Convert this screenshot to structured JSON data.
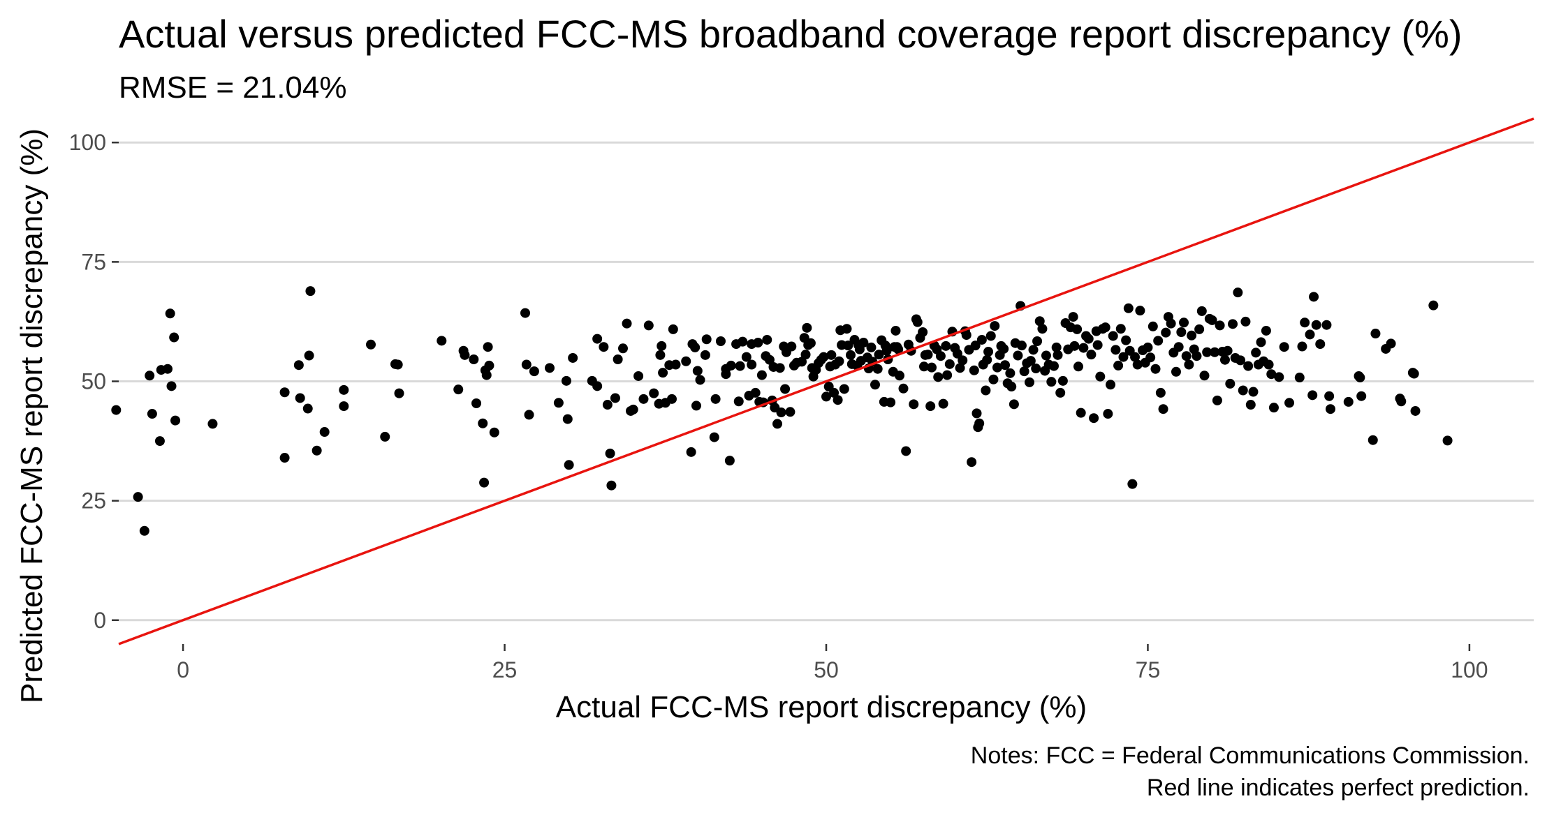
{
  "chart_data": {
    "type": "scatter",
    "title": "Actual versus predicted FCC-MS broadband coverage report discrepancy (%)",
    "subtitle": "RMSE = 21.04%",
    "xlabel": "Actual FCC-MS report discrepancy (%)",
    "ylabel": "Predicted FCC-MS report discrepancy (%)",
    "caption": [
      "Notes: FCC = Federal Communications Commission.",
      "Red line indicates perfect prediction."
    ],
    "xlim": [
      -5,
      105
    ],
    "ylim": [
      -5,
      105
    ],
    "x_ticks": [
      0,
      25,
      50,
      75,
      100
    ],
    "y_ticks": [
      0,
      25,
      50,
      75,
      100
    ],
    "grid": "horizontal major",
    "reference_line": {
      "slope": 1,
      "intercept": 0,
      "color": "#e8140f"
    },
    "point_color": "#000000",
    "points": [
      [
        -5.2,
        44
      ],
      [
        -3.5,
        25.8
      ],
      [
        -3,
        18.7
      ],
      [
        -2.6,
        51.2
      ],
      [
        -2.4,
        43.2
      ],
      [
        -1.8,
        37.5
      ],
      [
        -1.7,
        52.4
      ],
      [
        -1.2,
        52.6
      ],
      [
        -1,
        64.2
      ],
      [
        -0.9,
        49
      ],
      [
        -0.7,
        59.2
      ],
      [
        -0.6,
        41.8
      ],
      [
        2.3,
        41.1
      ],
      [
        7.9,
        47.7
      ],
      [
        7.9,
        34
      ],
      [
        9,
        53.4
      ],
      [
        9.1,
        46.5
      ],
      [
        9.7,
        44.3
      ],
      [
        9.8,
        55.4
      ],
      [
        9.9,
        68.9
      ],
      [
        10.4,
        35.5
      ],
      [
        11,
        39.4
      ],
      [
        12.5,
        48.2
      ],
      [
        12.5,
        44.8
      ],
      [
        14.6,
        57.7
      ],
      [
        15.7,
        38.4
      ],
      [
        16.5,
        53.6
      ],
      [
        16.7,
        53.5
      ],
      [
        16.8,
        47.5
      ],
      [
        20.1,
        58.5
      ],
      [
        21.4,
        48.3
      ],
      [
        21.8,
        56.4
      ],
      [
        21.9,
        55.5
      ],
      [
        22.6,
        54.6
      ],
      [
        22.8,
        45.4
      ],
      [
        23.3,
        41.2
      ],
      [
        23.4,
        28.8
      ],
      [
        23.5,
        52.3
      ],
      [
        23.6,
        51.3
      ],
      [
        23.7,
        57.2
      ],
      [
        23.8,
        53.3
      ],
      [
        24.2,
        39.3
      ],
      [
        26.6,
        64.3
      ],
      [
        26.7,
        53.5
      ],
      [
        26.9,
        43
      ],
      [
        27.3,
        52.1
      ],
      [
        28.5,
        52.8
      ],
      [
        29.2,
        45.5
      ],
      [
        29.8,
        50.1
      ],
      [
        29.9,
        42.1
      ],
      [
        30,
        32.5
      ],
      [
        30.3,
        54.9
      ],
      [
        31.8,
        50.1
      ],
      [
        32.2,
        49
      ],
      [
        32.2,
        58.9
      ],
      [
        32.7,
        57.2
      ],
      [
        33,
        45.1
      ],
      [
        33.2,
        34.9
      ],
      [
        33.3,
        28.2
      ],
      [
        33.6,
        46.5
      ],
      [
        33.8,
        54.6
      ],
      [
        34.2,
        56.9
      ],
      [
        34.5,
        62.1
      ],
      [
        34.8,
        43.8
      ],
      [
        35,
        44.1
      ],
      [
        35.4,
        51.1
      ],
      [
        35.8,
        46.3
      ],
      [
        36.2,
        61.7
      ],
      [
        36.6,
        47.5
      ],
      [
        37,
        45.3
      ],
      [
        37.1,
        55.5
      ],
      [
        37.2,
        57.4
      ],
      [
        37.3,
        51.8
      ],
      [
        37.5,
        45.5
      ],
      [
        37.8,
        53.4
      ],
      [
        38,
        46.3
      ],
      [
        38.1,
        60.9
      ],
      [
        38.3,
        53.5
      ],
      [
        39.1,
        54.2
      ],
      [
        39.5,
        35.2
      ],
      [
        39.6,
        57.8
      ],
      [
        39.8,
        57.1
      ],
      [
        39.9,
        44.9
      ],
      [
        40,
        52.2
      ],
      [
        40.2,
        50.3
      ],
      [
        40.6,
        55.5
      ],
      [
        40.7,
        58.8
      ],
      [
        41.3,
        38.3
      ],
      [
        41.4,
        46.3
      ],
      [
        41.8,
        58.4
      ],
      [
        42.2,
        52.6
      ],
      [
        42.2,
        51.5
      ],
      [
        42.5,
        33.4
      ],
      [
        42.6,
        53.3
      ],
      [
        43,
        57.8
      ],
      [
        43.2,
        45.8
      ],
      [
        43.3,
        53.2
      ],
      [
        43.5,
        58.3
      ],
      [
        43.8,
        55.1
      ],
      [
        44,
        47
      ],
      [
        44.2,
        57.8
      ],
      [
        44.2,
        53.5
      ],
      [
        44.5,
        47.6
      ],
      [
        44.7,
        58.1
      ],
      [
        44.8,
        45.7
      ],
      [
        45,
        51.3
      ],
      [
        45.1,
        45.6
      ],
      [
        45.3,
        55.3
      ],
      [
        45.4,
        58.7
      ],
      [
        45.6,
        54.5
      ],
      [
        45.8,
        46
      ],
      [
        45.9,
        53
      ],
      [
        46,
        44.5
      ],
      [
        46.2,
        41.1
      ],
      [
        46.4,
        52.8
      ],
      [
        46.5,
        43.5
      ],
      [
        46.7,
        57.3
      ],
      [
        46.8,
        48.4
      ],
      [
        46.9,
        56.1
      ],
      [
        47.2,
        43.6
      ],
      [
        47.3,
        57.3
      ],
      [
        47.5,
        53.3
      ],
      [
        47.7,
        53.9
      ],
      [
        48.1,
        54.1
      ],
      [
        48.3,
        59.1
      ],
      [
        48.4,
        55.6
      ],
      [
        48.5,
        61.2
      ],
      [
        48.6,
        57.6
      ],
      [
        48.8,
        58
      ],
      [
        48.9,
        52.8
      ],
      [
        49,
        51
      ],
      [
        49.2,
        52.4
      ],
      [
        49.4,
        53.8
      ],
      [
        49.6,
        54.5
      ],
      [
        49.8,
        55.1
      ],
      [
        50,
        46.8
      ],
      [
        50.2,
        48.9
      ],
      [
        50.3,
        53.1
      ],
      [
        50.4,
        55.5
      ],
      [
        50.6,
        47.6
      ],
      [
        50.7,
        53.5
      ],
      [
        50.9,
        46.1
      ],
      [
        51,
        54.2
      ],
      [
        51.1,
        60.7
      ],
      [
        51.2,
        57.6
      ],
      [
        51.4,
        48.4
      ],
      [
        51.6,
        61
      ],
      [
        51.7,
        57.5
      ],
      [
        51.9,
        55.5
      ],
      [
        52,
        53.6
      ],
      [
        52.2,
        58.7
      ],
      [
        52.4,
        53.3
      ],
      [
        52.5,
        57.6
      ],
      [
        52.6,
        56.7
      ],
      [
        52.7,
        54.3
      ],
      [
        52.9,
        58.1
      ],
      [
        53.2,
        55
      ],
      [
        53.3,
        52.7
      ],
      [
        53.5,
        57.1
      ],
      [
        53.6,
        54.1
      ],
      [
        53.8,
        49.3
      ],
      [
        54,
        52.6
      ],
      [
        54.1,
        55.6
      ],
      [
        54.3,
        58.6
      ],
      [
        54.5,
        45.7
      ],
      [
        54.6,
        57.5
      ],
      [
        54.7,
        56.4
      ],
      [
        54.8,
        54.6
      ],
      [
        55,
        45.6
      ],
      [
        55.2,
        52
      ],
      [
        55.3,
        57.2
      ],
      [
        55.4,
        60.6
      ],
      [
        55.5,
        57.2
      ],
      [
        55.6,
        56.7
      ],
      [
        55.7,
        51.2
      ],
      [
        56,
        48.5
      ],
      [
        56.2,
        35.4
      ],
      [
        56.4,
        57.7
      ],
      [
        56.6,
        56.4
      ],
      [
        56.8,
        45.2
      ],
      [
        57,
        63
      ],
      [
        57.1,
        62.4
      ],
      [
        57.3,
        59.1
      ],
      [
        57.5,
        60.3
      ],
      [
        57.6,
        53.1
      ],
      [
        57.7,
        55.5
      ],
      [
        57.9,
        55.6
      ],
      [
        58.1,
        44.8
      ],
      [
        58.2,
        52.9
      ],
      [
        58.4,
        57.5
      ],
      [
        58.6,
        56.7
      ],
      [
        58.7,
        50.9
      ],
      [
        58.9,
        55.3
      ],
      [
        59.1,
        45.3
      ],
      [
        59.3,
        57.4
      ],
      [
        59.4,
        51.3
      ],
      [
        59.6,
        53.6
      ],
      [
        59.8,
        60.4
      ],
      [
        60,
        57
      ],
      [
        60.2,
        55.8
      ],
      [
        60.4,
        52.8
      ],
      [
        60.6,
        54.4
      ],
      [
        60.8,
        60.5
      ],
      [
        60.9,
        59.7
      ],
      [
        61.1,
        56.6
      ],
      [
        61.3,
        33.1
      ],
      [
        61.5,
        52.3
      ],
      [
        61.6,
        57.5
      ],
      [
        61.7,
        43.3
      ],
      [
        61.8,
        40.4
      ],
      [
        61.9,
        41.2
      ],
      [
        62.1,
        58.7
      ],
      [
        62.2,
        53.5
      ],
      [
        62.4,
        48.1
      ],
      [
        62.5,
        54.5
      ],
      [
        62.6,
        56.2
      ],
      [
        62.8,
        59.5
      ],
      [
        63,
        50.4
      ],
      [
        63.1,
        61.6
      ],
      [
        63.3,
        52.9
      ],
      [
        63.5,
        55.5
      ],
      [
        63.6,
        57.4
      ],
      [
        63.8,
        56.8
      ],
      [
        63.9,
        53.4
      ],
      [
        64.1,
        49.6
      ],
      [
        64.3,
        51.7
      ],
      [
        64.4,
        48.9
      ],
      [
        64.6,
        45.2
      ],
      [
        64.7,
        58
      ],
      [
        64.9,
        55.4
      ],
      [
        65.1,
        65.8
      ],
      [
        65.2,
        57.5
      ],
      [
        65.4,
        52.1
      ],
      [
        65.6,
        53.8
      ],
      [
        65.8,
        49.8
      ],
      [
        65.9,
        54.3
      ],
      [
        66.1,
        56.6
      ],
      [
        66.3,
        52.7
      ],
      [
        66.4,
        58.4
      ],
      [
        66.6,
        62.6
      ],
      [
        66.8,
        61
      ],
      [
        67,
        52.2
      ],
      [
        67.1,
        55.4
      ],
      [
        67.3,
        53.5
      ],
      [
        67.5,
        49.9
      ],
      [
        67.7,
        53.2
      ],
      [
        67.9,
        57.1
      ],
      [
        68,
        55.5
      ],
      [
        68.2,
        47.6
      ],
      [
        68.4,
        50.1
      ],
      [
        68.6,
        62.2
      ],
      [
        68.8,
        56.7
      ],
      [
        69,
        61.3
      ],
      [
        69.2,
        63.5
      ],
      [
        69.3,
        57.4
      ],
      [
        69.5,
        60.9
      ],
      [
        69.6,
        53.1
      ],
      [
        69.8,
        43.4
      ],
      [
        70,
        57
      ],
      [
        70.2,
        59.5
      ],
      [
        70.4,
        58.9
      ],
      [
        70.6,
        55.6
      ],
      [
        70.8,
        42.3
      ],
      [
        71,
        60.5
      ],
      [
        71.1,
        57.6
      ],
      [
        71.3,
        51
      ],
      [
        71.5,
        61
      ],
      [
        71.7,
        61.3
      ],
      [
        71.9,
        43.2
      ],
      [
        72.1,
        49.3
      ],
      [
        72.3,
        59.5
      ],
      [
        72.5,
        56.6
      ],
      [
        72.7,
        53.3
      ],
      [
        72.9,
        61
      ],
      [
        73.1,
        55.1
      ],
      [
        73.3,
        58.6
      ],
      [
        73.5,
        65.3
      ],
      [
        73.6,
        56.4
      ],
      [
        73.8,
        28.5
      ],
      [
        74,
        55.1
      ],
      [
        74.2,
        53.5
      ],
      [
        74.4,
        64.8
      ],
      [
        74.6,
        56.5
      ],
      [
        74.8,
        53.9
      ],
      [
        75,
        57.1
      ],
      [
        75.2,
        55
      ],
      [
        75.4,
        61.5
      ],
      [
        75.6,
        52.6
      ],
      [
        75.8,
        58.5
      ],
      [
        76,
        47.6
      ],
      [
        76.2,
        44.2
      ],
      [
        76.4,
        60.2
      ],
      [
        76.6,
        63.5
      ],
      [
        76.8,
        62.1
      ],
      [
        77,
        56
      ],
      [
        77.2,
        52
      ],
      [
        77.4,
        57.2
      ],
      [
        77.6,
        60.3
      ],
      [
        77.8,
        62.3
      ],
      [
        78,
        55.3
      ],
      [
        78.2,
        53.5
      ],
      [
        78.4,
        59.6
      ],
      [
        78.6,
        56.7
      ],
      [
        78.8,
        55.3
      ],
      [
        79,
        60.9
      ],
      [
        79.2,
        64.7
      ],
      [
        79.4,
        51.2
      ],
      [
        79.6,
        56.1
      ],
      [
        79.8,
        63.1
      ],
      [
        80,
        62.8
      ],
      [
        80.2,
        56.1
      ],
      [
        80.4,
        46
      ],
      [
        80.6,
        61.7
      ],
      [
        80.8,
        56.2
      ],
      [
        81,
        54.5
      ],
      [
        81.2,
        56.4
      ],
      [
        81.4,
        49.5
      ],
      [
        81.6,
        62
      ],
      [
        81.8,
        54.9
      ],
      [
        82,
        68.6
      ],
      [
        82.2,
        54.4
      ],
      [
        82.4,
        48.1
      ],
      [
        82.6,
        62.5
      ],
      [
        82.8,
        53.2
      ],
      [
        83,
        45.1
      ],
      [
        83.2,
        47.8
      ],
      [
        83.4,
        56
      ],
      [
        83.6,
        53.5
      ],
      [
        83.8,
        58.2
      ],
      [
        84,
        54.2
      ],
      [
        84.2,
        60.6
      ],
      [
        84.4,
        53.5
      ],
      [
        84.6,
        51.5
      ],
      [
        84.8,
        44.5
      ],
      [
        85.2,
        50.9
      ],
      [
        85.6,
        57.2
      ],
      [
        86,
        45.5
      ],
      [
        86.8,
        50.8
      ],
      [
        87,
        57.3
      ],
      [
        87.2,
        62.3
      ],
      [
        87.6,
        59.8
      ],
      [
        87.8,
        47.1
      ],
      [
        87.9,
        67.7
      ],
      [
        88.1,
        61.8
      ],
      [
        88.4,
        57.8
      ],
      [
        88.9,
        61.8
      ],
      [
        89.1,
        46.9
      ],
      [
        89.2,
        44.2
      ],
      [
        90.6,
        45.7
      ],
      [
        91.4,
        51.1
      ],
      [
        91.5,
        50.8
      ],
      [
        91.6,
        46.9
      ],
      [
        92.5,
        37.7
      ],
      [
        92.7,
        60
      ],
      [
        93.5,
        56.8
      ],
      [
        93.9,
        57.9
      ],
      [
        94.6,
        46.4
      ],
      [
        94.7,
        45.8
      ],
      [
        95.6,
        51.8
      ],
      [
        95.7,
        51.6
      ],
      [
        95.8,
        43.8
      ],
      [
        97.2,
        65.9
      ],
      [
        98.3,
        37.6
      ]
    ]
  }
}
